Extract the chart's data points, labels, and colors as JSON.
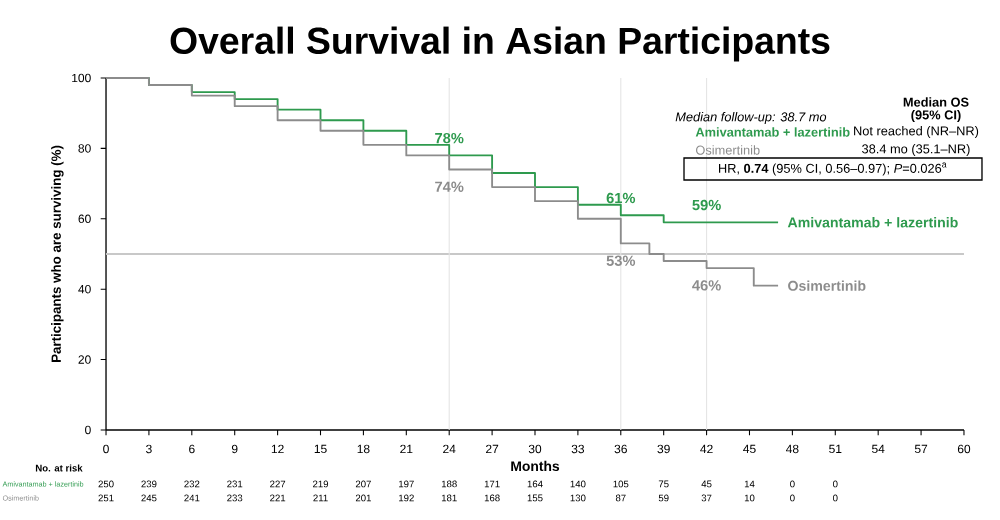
{
  "chart_data": {
    "type": "step",
    "title": "Overall Survival in Asian Participants",
    "xlabel": "Months",
    "ylabel": "Participants who are surviving (%)",
    "xlim": [
      0,
      60
    ],
    "xticks": [
      0,
      3,
      6,
      9,
      12,
      15,
      18,
      21,
      24,
      27,
      30,
      33,
      36,
      39,
      42,
      45,
      48,
      51,
      54,
      57,
      60
    ],
    "ylim": [
      0,
      100
    ],
    "yticks": [
      0,
      20,
      40,
      60,
      80,
      100
    ],
    "series": [
      {
        "name": "Amivantamab + lazertinib",
        "color": "#2e9a4e",
        "x": [
          0,
          3,
          6,
          9,
          12,
          15,
          18,
          21,
          24,
          27,
          30,
          33,
          36,
          39,
          42,
          45,
          47
        ],
        "values": [
          100,
          98,
          96,
          94,
          91,
          88,
          85,
          81,
          78,
          73,
          69,
          64,
          61,
          59,
          59,
          59,
          59
        ]
      },
      {
        "name": "Osimertinib",
        "color": "#8c8c8c",
        "x": [
          0,
          3,
          6,
          9,
          12,
          15,
          18,
          21,
          24,
          27,
          30,
          33,
          36,
          38,
          39,
          42,
          45.3,
          47
        ],
        "values": [
          100,
          98,
          95,
          92,
          88,
          85,
          81,
          78,
          74,
          69,
          65,
          60,
          53,
          50,
          48,
          46,
          41,
          41
        ]
      }
    ],
    "ref_lines": [
      {
        "axis": "y",
        "value": 50,
        "color": "#c8c8c8"
      },
      {
        "axis": "x",
        "value": 24,
        "color": "#e4e4e4"
      },
      {
        "axis": "x",
        "value": 36,
        "color": "#e4e4e4"
      },
      {
        "axis": "x",
        "value": 42,
        "color": "#e4e4e4"
      }
    ],
    "annotations": [
      "*Median follow-up: 38.7 mo*",
      "Median OS",
      "(95% CI)",
      "Not reached (NR–NR)",
      "38.4 mo (35.1–NR)",
      "HR, **0.74** (95% CI, 0.56–0.97); *P*=0.026$^{a}$",
      "No. at risk",
      {
        "text": "78%",
        "x": 24,
        "y": 78
      },
      {
        "text": "74%",
        "x": 24,
        "y": 74
      },
      {
        "text": "61%",
        "x": 36,
        "y": 61
      },
      {
        "text": "53%",
        "x": 36,
        "y": 53
      },
      {
        "text": "59%",
        "x": 42,
        "y": 59
      },
      {
        "text": "46%",
        "x": 42,
        "y": 46
      },
      "250",
      "239",
      "232",
      "231",
      "227",
      "219",
      "207",
      "197",
      "188",
      "171",
      "164",
      "140",
      "105",
      "75",
      "45",
      "14",
      "0",
      "0",
      "251",
      "245",
      "241",
      "233",
      "221",
      "211",
      "201",
      "192",
      "181",
      "168",
      "155",
      "130",
      "87",
      "59",
      "37",
      "10",
      "0",
      "0"
    ]
  }
}
